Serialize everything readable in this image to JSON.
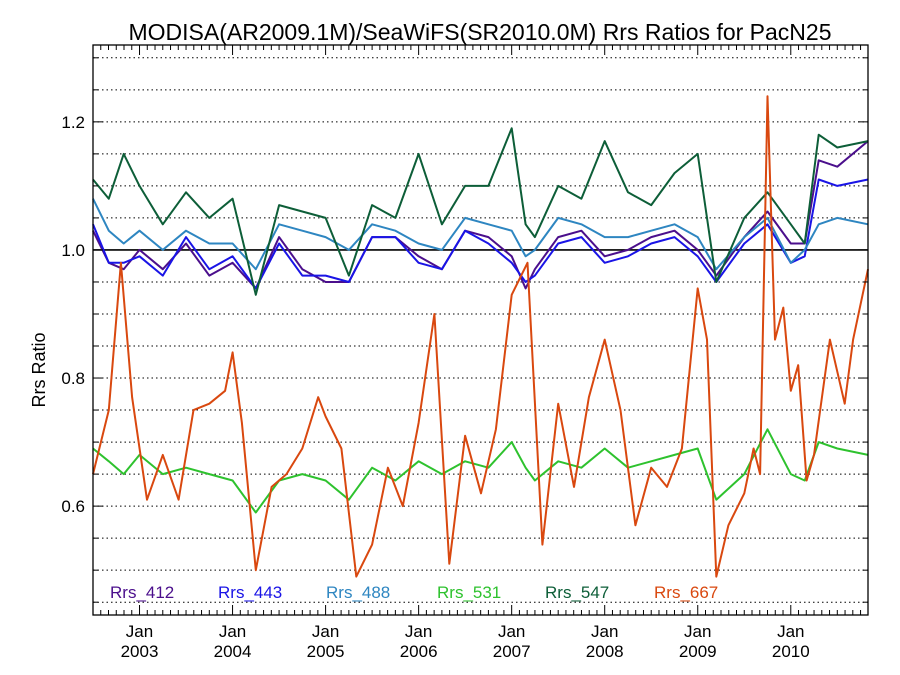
{
  "chart_data": {
    "type": "line",
    "title": "MODISA(AR2009.1M)/SeaWiFS(SR2010.0M)  Rrs Ratios for PacN25",
    "ylabel": "Rrs Ratio",
    "xlim": [
      2002.5,
      2010.83
    ],
    "ylim": [
      0.43,
      1.32
    ],
    "ytick_values": [
      0.6,
      0.8,
      1.0,
      1.2
    ],
    "ytick_labels": [
      "0.6",
      "0.8",
      "1.0",
      "1.2"
    ],
    "xtick_values": [
      2003,
      2004,
      2005,
      2006,
      2007,
      2008,
      2009,
      2010
    ],
    "xtick_month": "Jan",
    "xtick_years": [
      "2003",
      "2004",
      "2005",
      "2006",
      "2007",
      "2008",
      "2009",
      "2010"
    ],
    "grid": "horizontal dotted",
    "reference_line": 1.0,
    "legend_position": "bottom-left inside",
    "series": [
      {
        "name": "Rrs_412",
        "color": "#4b0f8c",
        "x": [
          2002.5,
          2002.67,
          2002.83,
          2003.0,
          2003.25,
          2003.5,
          2003.75,
          2004.0,
          2004.25,
          2004.5,
          2004.75,
          2005.0,
          2005.25,
          2005.5,
          2005.75,
          2006.0,
          2006.25,
          2006.5,
          2006.75,
          2007.0,
          2007.15,
          2007.25,
          2007.5,
          2007.75,
          2008.0,
          2008.25,
          2008.5,
          2008.75,
          2009.0,
          2009.2,
          2009.5,
          2009.75,
          2010.0,
          2010.15,
          2010.3,
          2010.5,
          2010.83
        ],
        "y": [
          1.03,
          0.98,
          0.97,
          1.0,
          0.97,
          1.01,
          0.96,
          0.98,
          0.94,
          1.02,
          0.97,
          0.95,
          0.95,
          1.02,
          1.02,
          0.99,
          0.97,
          1.03,
          1.02,
          0.99,
          0.94,
          0.97,
          1.02,
          1.03,
          0.99,
          1.0,
          1.02,
          1.03,
          1.0,
          0.96,
          1.02,
          1.06,
          1.01,
          1.01,
          1.14,
          1.13,
          1.17
        ]
      },
      {
        "name": "Rrs_443",
        "color": "#1a14e6",
        "x": [
          2002.5,
          2002.67,
          2002.83,
          2003.0,
          2003.25,
          2003.5,
          2003.75,
          2004.0,
          2004.25,
          2004.5,
          2004.75,
          2005.0,
          2005.25,
          2005.5,
          2005.75,
          2006.0,
          2006.25,
          2006.5,
          2006.75,
          2007.0,
          2007.15,
          2007.25,
          2007.5,
          2007.75,
          2008.0,
          2008.25,
          2008.5,
          2008.75,
          2009.0,
          2009.2,
          2009.5,
          2009.75,
          2010.0,
          2010.15,
          2010.3,
          2010.5,
          2010.83
        ],
        "y": [
          1.04,
          0.98,
          0.98,
          0.99,
          0.96,
          1.02,
          0.97,
          0.99,
          0.94,
          1.01,
          0.96,
          0.96,
          0.95,
          1.02,
          1.02,
          0.98,
          0.97,
          1.03,
          1.01,
          0.98,
          0.95,
          0.96,
          1.01,
          1.02,
          0.98,
          0.99,
          1.01,
          1.02,
          0.99,
          0.95,
          1.01,
          1.04,
          0.98,
          0.99,
          1.11,
          1.1,
          1.11
        ]
      },
      {
        "name": "Rrs_488",
        "color": "#2e86c1",
        "x": [
          2002.5,
          2002.67,
          2002.83,
          2003.0,
          2003.25,
          2003.5,
          2003.75,
          2004.0,
          2004.25,
          2004.5,
          2004.75,
          2005.0,
          2005.25,
          2005.5,
          2005.75,
          2006.0,
          2006.25,
          2006.5,
          2006.75,
          2007.0,
          2007.15,
          2007.25,
          2007.5,
          2007.75,
          2008.0,
          2008.25,
          2008.5,
          2008.75,
          2009.0,
          2009.2,
          2009.5,
          2009.75,
          2010.0,
          2010.15,
          2010.3,
          2010.5,
          2010.83
        ],
        "y": [
          1.08,
          1.03,
          1.01,
          1.03,
          1.0,
          1.03,
          1.01,
          1.01,
          0.97,
          1.04,
          1.03,
          1.02,
          1.0,
          1.04,
          1.03,
          1.01,
          1.0,
          1.05,
          1.04,
          1.03,
          0.99,
          1.0,
          1.05,
          1.04,
          1.02,
          1.02,
          1.03,
          1.04,
          1.02,
          0.97,
          1.02,
          1.05,
          0.98,
          1.0,
          1.04,
          1.05,
          1.04
        ]
      },
      {
        "name": "Rrs_531",
        "color": "#2ec22e",
        "x": [
          2002.5,
          2002.67,
          2002.83,
          2003.0,
          2003.25,
          2003.5,
          2003.75,
          2004.0,
          2004.25,
          2004.5,
          2004.75,
          2005.0,
          2005.25,
          2005.5,
          2005.75,
          2006.0,
          2006.25,
          2006.5,
          2006.75,
          2007.0,
          2007.15,
          2007.25,
          2007.5,
          2007.75,
          2008.0,
          2008.25,
          2008.5,
          2008.75,
          2009.0,
          2009.2,
          2009.5,
          2009.75,
          2010.0,
          2010.15,
          2010.3,
          2010.5,
          2010.83
        ],
        "y": [
          0.69,
          0.67,
          0.65,
          0.68,
          0.65,
          0.66,
          0.65,
          0.64,
          0.59,
          0.64,
          0.65,
          0.64,
          0.61,
          0.66,
          0.64,
          0.67,
          0.65,
          0.67,
          0.66,
          0.7,
          0.66,
          0.64,
          0.67,
          0.66,
          0.69,
          0.66,
          0.67,
          0.68,
          0.69,
          0.61,
          0.65,
          0.72,
          0.65,
          0.64,
          0.7,
          0.69,
          0.68
        ]
      },
      {
        "name": "Rrs_547",
        "color": "#0d5e38",
        "x": [
          2002.5,
          2002.67,
          2002.83,
          2003.0,
          2003.25,
          2003.5,
          2003.75,
          2004.0,
          2004.25,
          2004.5,
          2004.75,
          2005.0,
          2005.25,
          2005.5,
          2005.75,
          2006.0,
          2006.25,
          2006.5,
          2006.75,
          2007.0,
          2007.15,
          2007.25,
          2007.5,
          2007.75,
          2008.0,
          2008.25,
          2008.5,
          2008.75,
          2009.0,
          2009.2,
          2009.5,
          2009.75,
          2010.0,
          2010.15,
          2010.3,
          2010.5,
          2010.83
        ],
        "y": [
          1.11,
          1.08,
          1.15,
          1.1,
          1.04,
          1.09,
          1.05,
          1.08,
          0.93,
          1.07,
          1.06,
          1.05,
          0.96,
          1.07,
          1.05,
          1.15,
          1.04,
          1.1,
          1.1,
          1.19,
          1.04,
          1.02,
          1.1,
          1.08,
          1.17,
          1.09,
          1.07,
          1.12,
          1.15,
          0.95,
          1.05,
          1.09,
          1.04,
          1.01,
          1.18,
          1.16,
          1.17
        ]
      },
      {
        "name": "Rrs_667",
        "color": "#d9480f",
        "x": [
          2002.5,
          2002.67,
          2002.8,
          2002.92,
          2003.08,
          2003.25,
          2003.42,
          2003.58,
          2003.75,
          2003.92,
          2004.0,
          2004.1,
          2004.25,
          2004.42,
          2004.58,
          2004.75,
          2004.92,
          2005.0,
          2005.17,
          2005.33,
          2005.5,
          2005.67,
          2005.83,
          2006.0,
          2006.17,
          2006.33,
          2006.5,
          2006.67,
          2006.83,
          2007.0,
          2007.17,
          2007.33,
          2007.5,
          2007.67,
          2007.83,
          2008.0,
          2008.17,
          2008.33,
          2008.5,
          2008.67,
          2008.83,
          2009.0,
          2009.1,
          2009.2,
          2009.33,
          2009.5,
          2009.6,
          2009.67,
          2009.75,
          2009.83,
          2009.92,
          2010.0,
          2010.08,
          2010.17,
          2010.25,
          2010.42,
          2010.58,
          2010.67,
          2010.83
        ],
        "y": [
          0.65,
          0.75,
          0.98,
          0.77,
          0.61,
          0.68,
          0.61,
          0.75,
          0.76,
          0.78,
          0.84,
          0.73,
          0.5,
          0.63,
          0.65,
          0.69,
          0.77,
          0.74,
          0.69,
          0.49,
          0.54,
          0.66,
          0.6,
          0.73,
          0.9,
          0.51,
          0.71,
          0.62,
          0.72,
          0.93,
          0.98,
          0.54,
          0.76,
          0.63,
          0.77,
          0.86,
          0.75,
          0.57,
          0.66,
          0.63,
          0.69,
          0.94,
          0.86,
          0.49,
          0.57,
          0.62,
          0.69,
          0.65,
          1.24,
          0.86,
          0.91,
          0.78,
          0.82,
          0.64,
          0.68,
          0.86,
          0.76,
          0.86,
          0.97
        ]
      }
    ]
  }
}
